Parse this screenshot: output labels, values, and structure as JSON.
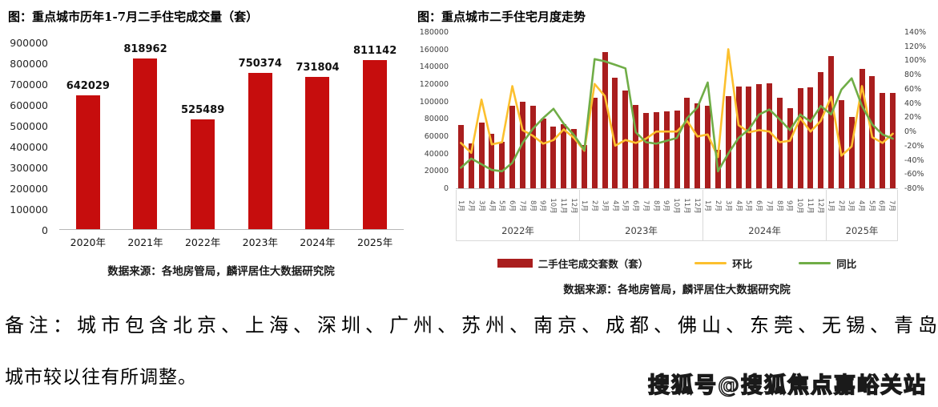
{
  "chart_data": [
    {
      "type": "bar",
      "title": "图：重点城市历年1-7月二手住宅成交量（套）",
      "categories": [
        "2020年",
        "2021年",
        "2022年",
        "2023年",
        "2024年",
        "2025年"
      ],
      "values": [
        642029,
        818962,
        525489,
        750374,
        731804,
        811142
      ],
      "y_ticks": [
        900000,
        800000,
        700000,
        600000,
        500000,
        400000,
        300000,
        200000,
        100000,
        0
      ],
      "ylim": [
        0,
        900000
      ],
      "bar_color": "#c60d0d",
      "grid": "off",
      "source": "数据来源：各地房管局，麟评居住大数据研究院"
    },
    {
      "type": "combo-bar-line",
      "title": "图：重点城市二手住宅月度走势",
      "years": [
        {
          "label": "2022年",
          "months": 12
        },
        {
          "label": "2023年",
          "months": 12
        },
        {
          "label": "2024年",
          "months": 12
        },
        {
          "label": "2025年",
          "months": 7
        }
      ],
      "month_labels": [
        "1月",
        "2月",
        "3月",
        "4月",
        "5月",
        "6月",
        "7月",
        "8月",
        "9月",
        "10月",
        "11月",
        "12月",
        "1月",
        "2月",
        "3月",
        "4月",
        "5月",
        "6月",
        "7月",
        "8月",
        "9月",
        "10月",
        "11月",
        "12月",
        "1月",
        "2月",
        "3月",
        "4月",
        "5月",
        "6月",
        "7月",
        "8月",
        "9月",
        "10月",
        "11月",
        "12月",
        "1月",
        "2月",
        "3月",
        "4月",
        "5月",
        "6月",
        "7月"
      ],
      "bars": {
        "name": "二手住宅成交套数（套）",
        "color": "#a91e1e",
        "values": [
          73000,
          52000,
          76000,
          63000,
          54000,
          95000,
          100000,
          95000,
          80000,
          71000,
          74000,
          68000,
          50000,
          104000,
          157000,
          127000,
          113000,
          96000,
          87000,
          88000,
          89000,
          90000,
          104000,
          98000,
          95000,
          44000,
          106000,
          117000,
          117000,
          120000,
          121000,
          104000,
          92000,
          115000,
          116000,
          134000,
          152000,
          102000,
          82000,
          138000,
          129000,
          110000,
          110000
        ]
      },
      "line_mom": {
        "name": "环比",
        "color": "#fcc02e",
        "unit": "%",
        "values": [
          -15,
          -29,
          46,
          -17,
          -14,
          65,
          3,
          -5,
          -16,
          -11,
          4,
          -8,
          -26,
          68,
          51,
          -19,
          -11,
          -15,
          -9,
          1,
          1,
          1,
          16,
          -6,
          -3,
          -35,
          117,
          10,
          0,
          3,
          1,
          -14,
          -12,
          20,
          1,
          16,
          50,
          -33,
          -20,
          65,
          -7,
          -15,
          -2
        ]
      },
      "line_yoy": {
        "name": "同比",
        "color": "#70ad47",
        "unit": "%",
        "values": [
          -50,
          -37,
          -45,
          -53,
          -55,
          -43,
          -15,
          5,
          20,
          33,
          12,
          -4,
          -25,
          103,
          100,
          95,
          90,
          0,
          -14,
          -16,
          -12,
          -8,
          20,
          35,
          70,
          -55,
          -30,
          -8,
          4,
          25,
          32,
          18,
          3,
          25,
          15,
          37,
          25,
          60,
          76,
          37,
          11,
          -3,
          -9
        ]
      },
      "left_axis": {
        "ticks": [
          180000,
          160000,
          140000,
          120000,
          100000,
          80000,
          60000,
          40000,
          20000,
          0
        ],
        "max": 180000
      },
      "right_axis": {
        "ticks": [
          "140%",
          "120%",
          "100%",
          "80%",
          "60%",
          "40%",
          "20%",
          "0%",
          "-20%",
          "-40%",
          "-60%",
          "-80%"
        ],
        "min": -80,
        "max": 140
      },
      "grid": "off",
      "legend_position": "bottom",
      "source": "数据来源：各地房管局，麟评居住大数据研究院"
    }
  ],
  "note": {
    "line1": "备注：城市包含北京、上海、深圳、广州、苏州、南京、成都、佛山、东莞、无锡、青岛、厦门、郑州，",
    "line2": "城市较以往有所调整。"
  },
  "watermark": "搜狐号@搜狐焦点嘉峪关站"
}
